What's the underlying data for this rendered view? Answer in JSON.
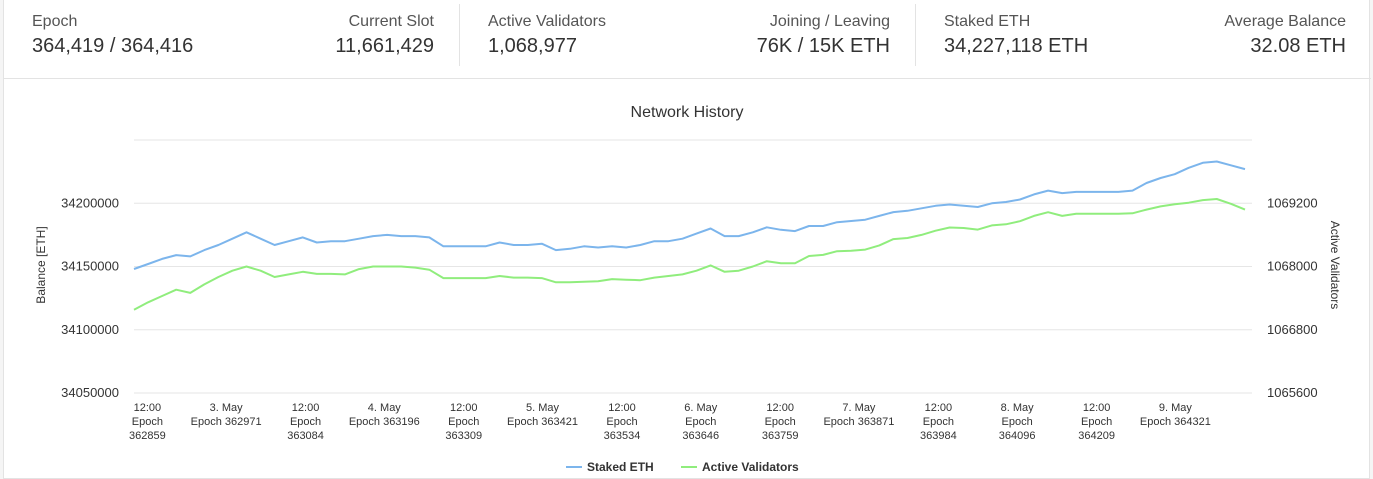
{
  "stats": [
    {
      "label": "Epoch",
      "value": "364,419 / 364,416"
    },
    {
      "label": "Current Slot",
      "value": "11,661,429"
    },
    {
      "label": "Active Validators",
      "value": "1,068,977"
    },
    {
      "label": "Joining / Leaving",
      "value": "76K / 15K ETH"
    },
    {
      "label": "Staked ETH",
      "value": "34,227,118 ETH"
    },
    {
      "label": "Average Balance",
      "value": "32.08 ETH"
    }
  ],
  "chart_data": {
    "type": "line",
    "title": "Network History",
    "ylabel": "Balance [ETH]",
    "y2label": "Active Validators",
    "ylim": [
      34050000,
      34250000
    ],
    "y2lim": [
      1065600,
      1070400
    ],
    "yticks": [
      "34050000",
      "34100000",
      "34150000",
      "34200000"
    ],
    "y2ticks": [
      "1065600",
      "1066800",
      "1068000",
      "1069200"
    ],
    "xlim": [
      362840,
      364430
    ],
    "xticks": [
      {
        "x": 362859,
        "line1": "12:00",
        "line2": "Epoch",
        "line3": "362859"
      },
      {
        "x": 362971,
        "line1": "3. May",
        "line2": "Epoch 362971",
        "line3": ""
      },
      {
        "x": 363084,
        "line1": "12:00",
        "line2": "Epoch",
        "line3": "363084"
      },
      {
        "x": 363196,
        "line1": "4. May",
        "line2": "Epoch 363196",
        "line3": ""
      },
      {
        "x": 363309,
        "line1": "12:00",
        "line2": "Epoch",
        "line3": "363309"
      },
      {
        "x": 363421,
        "line1": "5. May",
        "line2": "Epoch 363421",
        "line3": ""
      },
      {
        "x": 363534,
        "line1": "12:00",
        "line2": "Epoch",
        "line3": "363534"
      },
      {
        "x": 363646,
        "line1": "6. May",
        "line2": "Epoch",
        "line3": "363646"
      },
      {
        "x": 363759,
        "line1": "12:00",
        "line2": "Epoch",
        "line3": "363759"
      },
      {
        "x": 363871,
        "line1": "7. May",
        "line2": "Epoch 363871",
        "line3": ""
      },
      {
        "x": 363984,
        "line1": "12:00",
        "line2": "Epoch",
        "line3": "363984"
      },
      {
        "x": 364096,
        "line1": "8. May",
        "line2": "Epoch",
        "line3": "364096"
      },
      {
        "x": 364209,
        "line1": "12:00",
        "line2": "Epoch",
        "line3": "364209"
      },
      {
        "x": 364321,
        "line1": "9. May",
        "line2": "Epoch 364321",
        "line3": ""
      }
    ],
    "grid": true,
    "legend_position": "bottom-center",
    "series": [
      {
        "name": "Staked ETH",
        "axis": "left",
        "color": "#7cb5ec",
        "x": [
          362840,
          362860,
          362880,
          362900,
          362920,
          362940,
          362960,
          362980,
          363000,
          363020,
          363040,
          363060,
          363080,
          363100,
          363120,
          363140,
          363160,
          363180,
          363200,
          363220,
          363240,
          363260,
          363280,
          363300,
          363320,
          363340,
          363360,
          363380,
          363400,
          363420,
          363440,
          363460,
          363480,
          363500,
          363520,
          363540,
          363560,
          363580,
          363600,
          363620,
          363640,
          363660,
          363680,
          363700,
          363720,
          363740,
          363760,
          363780,
          363800,
          363820,
          363840,
          363860,
          363880,
          363900,
          363920,
          363940,
          363960,
          363980,
          364000,
          364020,
          364040,
          364060,
          364080,
          364100,
          364120,
          364140,
          364160,
          364180,
          364200,
          364220,
          364240,
          364260,
          364280,
          364300,
          364320,
          364340,
          364360,
          364380,
          364400,
          364420
        ],
        "values": [
          34148000,
          34152000,
          34156000,
          34159000,
          34158000,
          34163000,
          34167000,
          34172000,
          34177000,
          34172000,
          34167000,
          34170000,
          34173000,
          34169000,
          34170000,
          34170000,
          34172000,
          34174000,
          34175000,
          34174000,
          34174000,
          34173000,
          34166000,
          34166000,
          34166000,
          34166000,
          34169000,
          34167000,
          34167000,
          34168000,
          34163000,
          34164000,
          34166000,
          34165000,
          34166000,
          34165000,
          34167000,
          34170000,
          34170000,
          34172000,
          34176000,
          34180000,
          34174000,
          34174000,
          34177000,
          34181000,
          34179000,
          34178000,
          34182000,
          34182000,
          34185000,
          34186000,
          34187000,
          34190000,
          34193000,
          34194000,
          34196000,
          34198000,
          34199000,
          34198000,
          34197000,
          34200000,
          34201000,
          34203000,
          34207000,
          34210000,
          34208000,
          34209000,
          34209000,
          34209000,
          34209000,
          34210000,
          34216000,
          34220000,
          34223000,
          34228000,
          34232000,
          34233000,
          34230000,
          34227000
        ]
      },
      {
        "name": "Active Validators",
        "axis": "right",
        "color": "#90ed7d",
        "x": [
          362840,
          362860,
          362880,
          362900,
          362920,
          362940,
          362960,
          362980,
          363000,
          363020,
          363040,
          363060,
          363080,
          363100,
          363120,
          363140,
          363160,
          363180,
          363200,
          363220,
          363240,
          363260,
          363280,
          363300,
          363320,
          363340,
          363360,
          363380,
          363400,
          363420,
          363440,
          363460,
          363480,
          363500,
          363520,
          363540,
          363560,
          363580,
          363600,
          363620,
          363640,
          363660,
          363680,
          363700,
          363720,
          363740,
          363760,
          363780,
          363800,
          363820,
          363840,
          363860,
          363880,
          363900,
          363920,
          363940,
          363960,
          363980,
          364000,
          364020,
          364040,
          364060,
          364080,
          364100,
          364120,
          364140,
          364160,
          364180,
          364200,
          364220,
          364240,
          364260,
          364280,
          364300,
          364320,
          364340,
          364360,
          364380,
          364400,
          364420
        ],
        "values": [
          1067180,
          1067320,
          1067440,
          1067560,
          1067500,
          1067660,
          1067800,
          1067920,
          1068000,
          1067920,
          1067800,
          1067850,
          1067900,
          1067860,
          1067860,
          1067850,
          1067950,
          1068000,
          1068000,
          1068000,
          1067980,
          1067940,
          1067780,
          1067780,
          1067780,
          1067780,
          1067820,
          1067790,
          1067790,
          1067780,
          1067700,
          1067700,
          1067710,
          1067720,
          1067760,
          1067750,
          1067740,
          1067790,
          1067820,
          1067850,
          1067920,
          1068020,
          1067900,
          1067920,
          1068000,
          1068100,
          1068060,
          1068060,
          1068200,
          1068220,
          1068290,
          1068300,
          1068320,
          1068400,
          1068520,
          1068540,
          1068600,
          1068680,
          1068740,
          1068730,
          1068700,
          1068780,
          1068800,
          1068860,
          1068960,
          1069030,
          1068960,
          1069000,
          1069000,
          1069000,
          1069000,
          1069010,
          1069080,
          1069140,
          1069180,
          1069210,
          1069260,
          1069280,
          1069190,
          1069080
        ]
      }
    ]
  }
}
